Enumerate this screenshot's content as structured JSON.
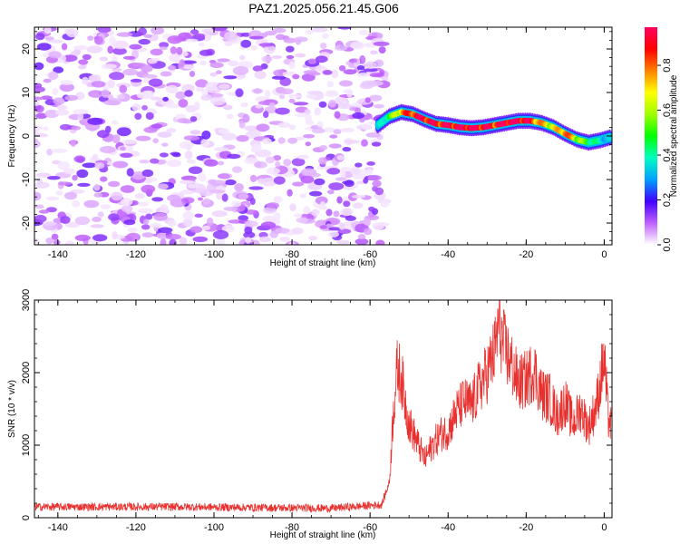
{
  "chart_data": [
    {
      "type": "heatmap",
      "title": "PAZ1.2025.056.21.45.G06",
      "xlabel": "Height of straight line (km)",
      "ylabel": "Frequency (Hz)",
      "xlim": [
        -146,
        2
      ],
      "ylim": [
        -25,
        25
      ],
      "x_ticks": [
        "-140",
        "-120",
        "-100",
        "-80",
        "-60",
        "-40",
        "-20",
        "0"
      ],
      "y_ticks": [
        "-20",
        "-10",
        "0",
        "10",
        "20"
      ],
      "colorbar": {
        "label": "Normalized spectral amplitude",
        "range": [
          0,
          0.97
        ],
        "ticks": [
          "0.0",
          "0.2",
          "0.4",
          "0.6",
          "0.8"
        ]
      },
      "signal_ridge": {
        "description_free": true,
        "x": [
          -58,
          -55,
          -52,
          -49,
          -46,
          -43,
          -40,
          -37,
          -34,
          -31,
          -28,
          -25,
          -22,
          -19,
          -16,
          -13,
          -10,
          -7,
          -4,
          -1,
          2
        ],
        "y": [
          2.5,
          4.5,
          5.5,
          5.0,
          3.8,
          2.8,
          2.5,
          2.0,
          1.8,
          2.0,
          2.5,
          3.0,
          3.5,
          3.5,
          3.0,
          2.0,
          0.5,
          -0.8,
          -1.5,
          -1.0,
          -0.2
        ],
        "amplitude": [
          0.3,
          0.45,
          0.7,
          0.85,
          0.9,
          0.85,
          0.9,
          0.9,
          0.95,
          0.9,
          0.85,
          0.95,
          0.97,
          0.85,
          0.7,
          0.6,
          0.8,
          0.6,
          0.45,
          0.35,
          0.3
        ]
      },
      "noise_region": {
        "x_range": [
          -146,
          -56
        ],
        "y_range": [
          -25,
          25
        ],
        "amplitude_max": 0.15
      }
    },
    {
      "type": "line",
      "xlabel": "Height of straight line (km)",
      "ylabel": "SNR (10 * v/v)",
      "xlim": [
        -146,
        2
      ],
      "ylim": [
        0,
        3000
      ],
      "x_ticks": [
        "-140",
        "-120",
        "-100",
        "-80",
        "-60",
        "-40",
        "-20",
        "0"
      ],
      "y_ticks": [
        "0",
        "1000",
        "2000",
        "3000"
      ],
      "color": "#e8302e",
      "envelope": {
        "x": [
          -146,
          -130,
          -110,
          -90,
          -70,
          -57,
          -55,
          -54,
          -53,
          -52,
          -51,
          -50,
          -48,
          -46,
          -44,
          -42,
          -40,
          -38,
          -36,
          -34,
          -32,
          -30,
          -28,
          -27,
          -26,
          -24,
          -22,
          -20,
          -18,
          -16,
          -14,
          -12,
          -10,
          -8,
          -6,
          -4,
          -2,
          0,
          1,
          2
        ],
        "y": [
          150,
          150,
          150,
          140,
          130,
          180,
          500,
          1500,
          2050,
          1950,
          1600,
          1300,
          1050,
          800,
          1000,
          1150,
          1200,
          1450,
          1600,
          1550,
          1800,
          2000,
          2300,
          2700,
          2400,
          2150,
          1850,
          1900,
          2050,
          1700,
          1650,
          1400,
          1600,
          1300,
          1500,
          1250,
          1550,
          2200,
          1400,
          1200
        ]
      }
    }
  ]
}
